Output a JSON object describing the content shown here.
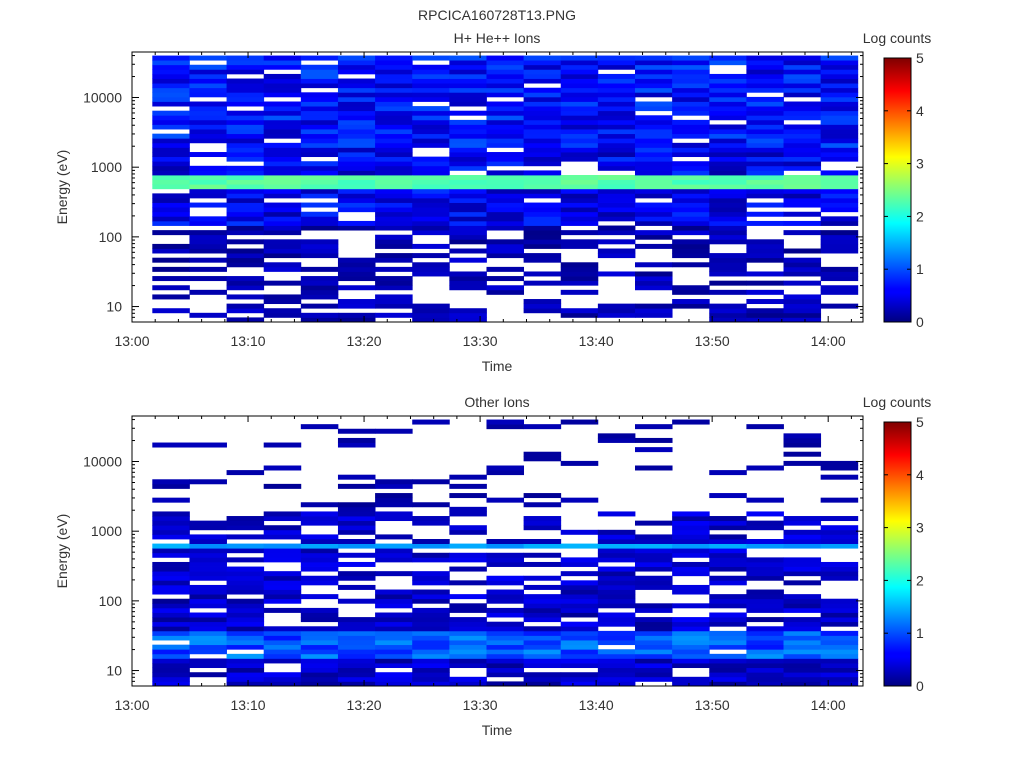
{
  "figure": {
    "title": "RPCICA160728T13.PNG"
  },
  "chart_data": [
    {
      "type": "heatmap",
      "title": "H+ He++ Ions",
      "xlabel": "Time",
      "ylabel": "Energy (eV)",
      "x_ticks": [
        "13:00",
        "13:10",
        "13:20",
        "13:30",
        "13:40",
        "13:50",
        "14:00"
      ],
      "y_ticks": [
        "10",
        "100",
        "1000",
        "10000"
      ],
      "y_scale": "log",
      "colorbar": {
        "label": "Log counts",
        "ticks": [
          "0",
          "1",
          "2",
          "3",
          "4",
          "5"
        ],
        "range": [
          0,
          5
        ]
      },
      "time_bins": 19,
      "x_range": [
        "13:00",
        "14:03"
      ],
      "y_range": [
        6,
        45000
      ],
      "band": {
        "energy_range": [
          500,
          720
        ],
        "log_counts": 2.3
      }
    },
    {
      "type": "heatmap",
      "title": "Other Ions",
      "xlabel": "Time",
      "ylabel": "Energy (eV)",
      "x_ticks": [
        "13:00",
        "13:10",
        "13:20",
        "13:30",
        "13:40",
        "13:50",
        "14:00"
      ],
      "y_ticks": [
        "10",
        "100",
        "1000",
        "10000"
      ],
      "y_scale": "log",
      "colorbar": {
        "label": "Log counts",
        "ticks": [
          "0",
          "1",
          "2",
          "3",
          "4",
          "5"
        ],
        "range": [
          0,
          5
        ]
      },
      "time_bins": 19,
      "x_range": [
        "13:00",
        "14:03"
      ],
      "y_range": [
        6,
        45000
      ],
      "band": {
        "energy_range": [
          540,
          700
        ],
        "log_counts": 1.4
      }
    }
  ]
}
